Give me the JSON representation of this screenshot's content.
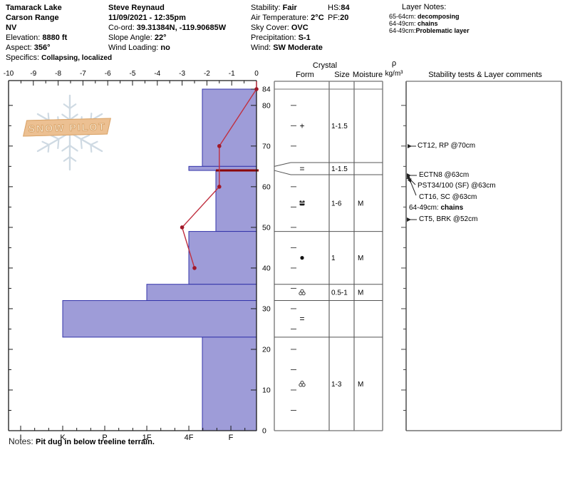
{
  "header": {
    "location": {
      "name": "Tamarack Lake",
      "range": "Carson Range",
      "state": "NV",
      "elevation_label": "Elevation: ",
      "elevation": "8880 ft",
      "aspect_label": "Aspect: ",
      "aspect": "356°",
      "specifics_label": "Specifics: ",
      "specifics": "Collapsing, localized"
    },
    "observer": {
      "name": "Steve Reynaud",
      "datetime": "11/09/2021 - 12:35pm",
      "coord_label": "Co-ord: ",
      "coord": "39.31384N, -119.90685W",
      "slope_label": "Slope Angle: ",
      "slope": "22°",
      "wind_loading_label": "Wind Loading: ",
      "wind_loading": "no"
    },
    "conditions": {
      "stability_label": "Stability: ",
      "stability": "Fair",
      "air_temp_label": "Air Temperature: ",
      "air_temp": "2°C",
      "sky_label": "Sky Cover: ",
      "sky": "OVC",
      "precip_label": "Precipitation: ",
      "precip": "S-1",
      "wind_label": "Wind: ",
      "wind": "SW Moderate"
    },
    "totals": {
      "hs_label": "HS:",
      "hs": "84",
      "pf_label": "PF:",
      "pf": "20"
    },
    "layer_notes": {
      "title": "Layer Notes:",
      "items": [
        {
          "range": "65-64cm: ",
          "note": "decomposing"
        },
        {
          "range": "64-49cm: ",
          "note": "chains"
        },
        {
          "range": "64-49cm:",
          "note": "Problematic layer"
        }
      ]
    }
  },
  "panel": {
    "crystal": "Crystal",
    "form": "Form",
    "size": "Size",
    "moisture": "Moisture",
    "rho": "ρ",
    "rho_unit": "kg/m³",
    "stability_header": "Stability tests & Layer comments"
  },
  "comments": [
    {
      "text": "CT12, RP @70cm"
    },
    {
      "text": "ECTN8 @63cm"
    },
    {
      "text": "PST34/100 (SF) @63cm"
    },
    {
      "text": "CT16, SC @63cm"
    },
    {
      "range": "64-49cm: ",
      "bold": "chains"
    },
    {
      "text": "CT5, BRK @52cm"
    }
  ],
  "notes": {
    "label": "Notes: ",
    "text": "Pit dug in below treeline terrain."
  },
  "logo": {
    "text": "SNOW PILOT"
  },
  "chart_data": {
    "type": "bar",
    "subtype": "snow-profile",
    "depth_axis": {
      "unit": "cm",
      "min": 0,
      "max": 84,
      "tick_labels": [
        0,
        10,
        20,
        30,
        40,
        50,
        60,
        70,
        80,
        84
      ],
      "minor_step": 5
    },
    "hardness_axis": {
      "categories": [
        "I",
        "K",
        "P",
        "1F",
        "4F",
        "F"
      ]
    },
    "temperature_axis": {
      "unit": "°C",
      "min": -10,
      "max": 0,
      "ticks": [
        -10,
        -9,
        -8,
        -7,
        -6,
        -5,
        -4,
        -3,
        -2,
        -1,
        0
      ]
    },
    "layers": [
      {
        "top_cm": 84,
        "bottom_cm": 65,
        "hardness": "4F-",
        "form": "plus",
        "size_mm": "1-1.5",
        "moisture": ""
      },
      {
        "top_cm": 65,
        "bottom_cm": 64,
        "hardness": "4F",
        "form": "equals",
        "size_mm": "1-1.5",
        "moisture": ""
      },
      {
        "top_cm": 64,
        "bottom_cm": 49,
        "hardness": "F+",
        "form": "crust",
        "size_mm": "1-6",
        "moisture": "M"
      },
      {
        "top_cm": 49,
        "bottom_cm": 36,
        "hardness": "4F",
        "form": "dot",
        "size_mm": "1",
        "moisture": "M"
      },
      {
        "top_cm": 36,
        "bottom_cm": 32,
        "hardness": "1F",
        "form": "cluster",
        "size_mm": "0.5-1",
        "moisture": "M"
      },
      {
        "top_cm": 32,
        "bottom_cm": 23,
        "hardness": "K",
        "form": "equals",
        "size_mm": "",
        "moisture": ""
      },
      {
        "top_cm": 23,
        "bottom_cm": 0,
        "hardness": "4F-",
        "form": "cluster",
        "size_mm": "1-3",
        "moisture": "M"
      }
    ],
    "temperature_series": [
      {
        "depth_cm": 84,
        "temp_c": 0
      },
      {
        "depth_cm": 70,
        "temp_c": -1.5
      },
      {
        "depth_cm": 60,
        "temp_c": -1.5
      },
      {
        "depth_cm": 50,
        "temp_c": -3
      },
      {
        "depth_cm": 40,
        "temp_c": -2.5
      }
    ],
    "problematic_layer": {
      "depth_cm": 64,
      "hardness_from": "F+"
    },
    "colors": {
      "bar_fill": "#9e9cd8",
      "bar_border": "#3434aa",
      "temp_line": "#c03040",
      "temp_dot": "#a01828",
      "problem_line": "#8b0000",
      "table_line": "#707070",
      "axis_line": "#1a1a1a"
    }
  }
}
